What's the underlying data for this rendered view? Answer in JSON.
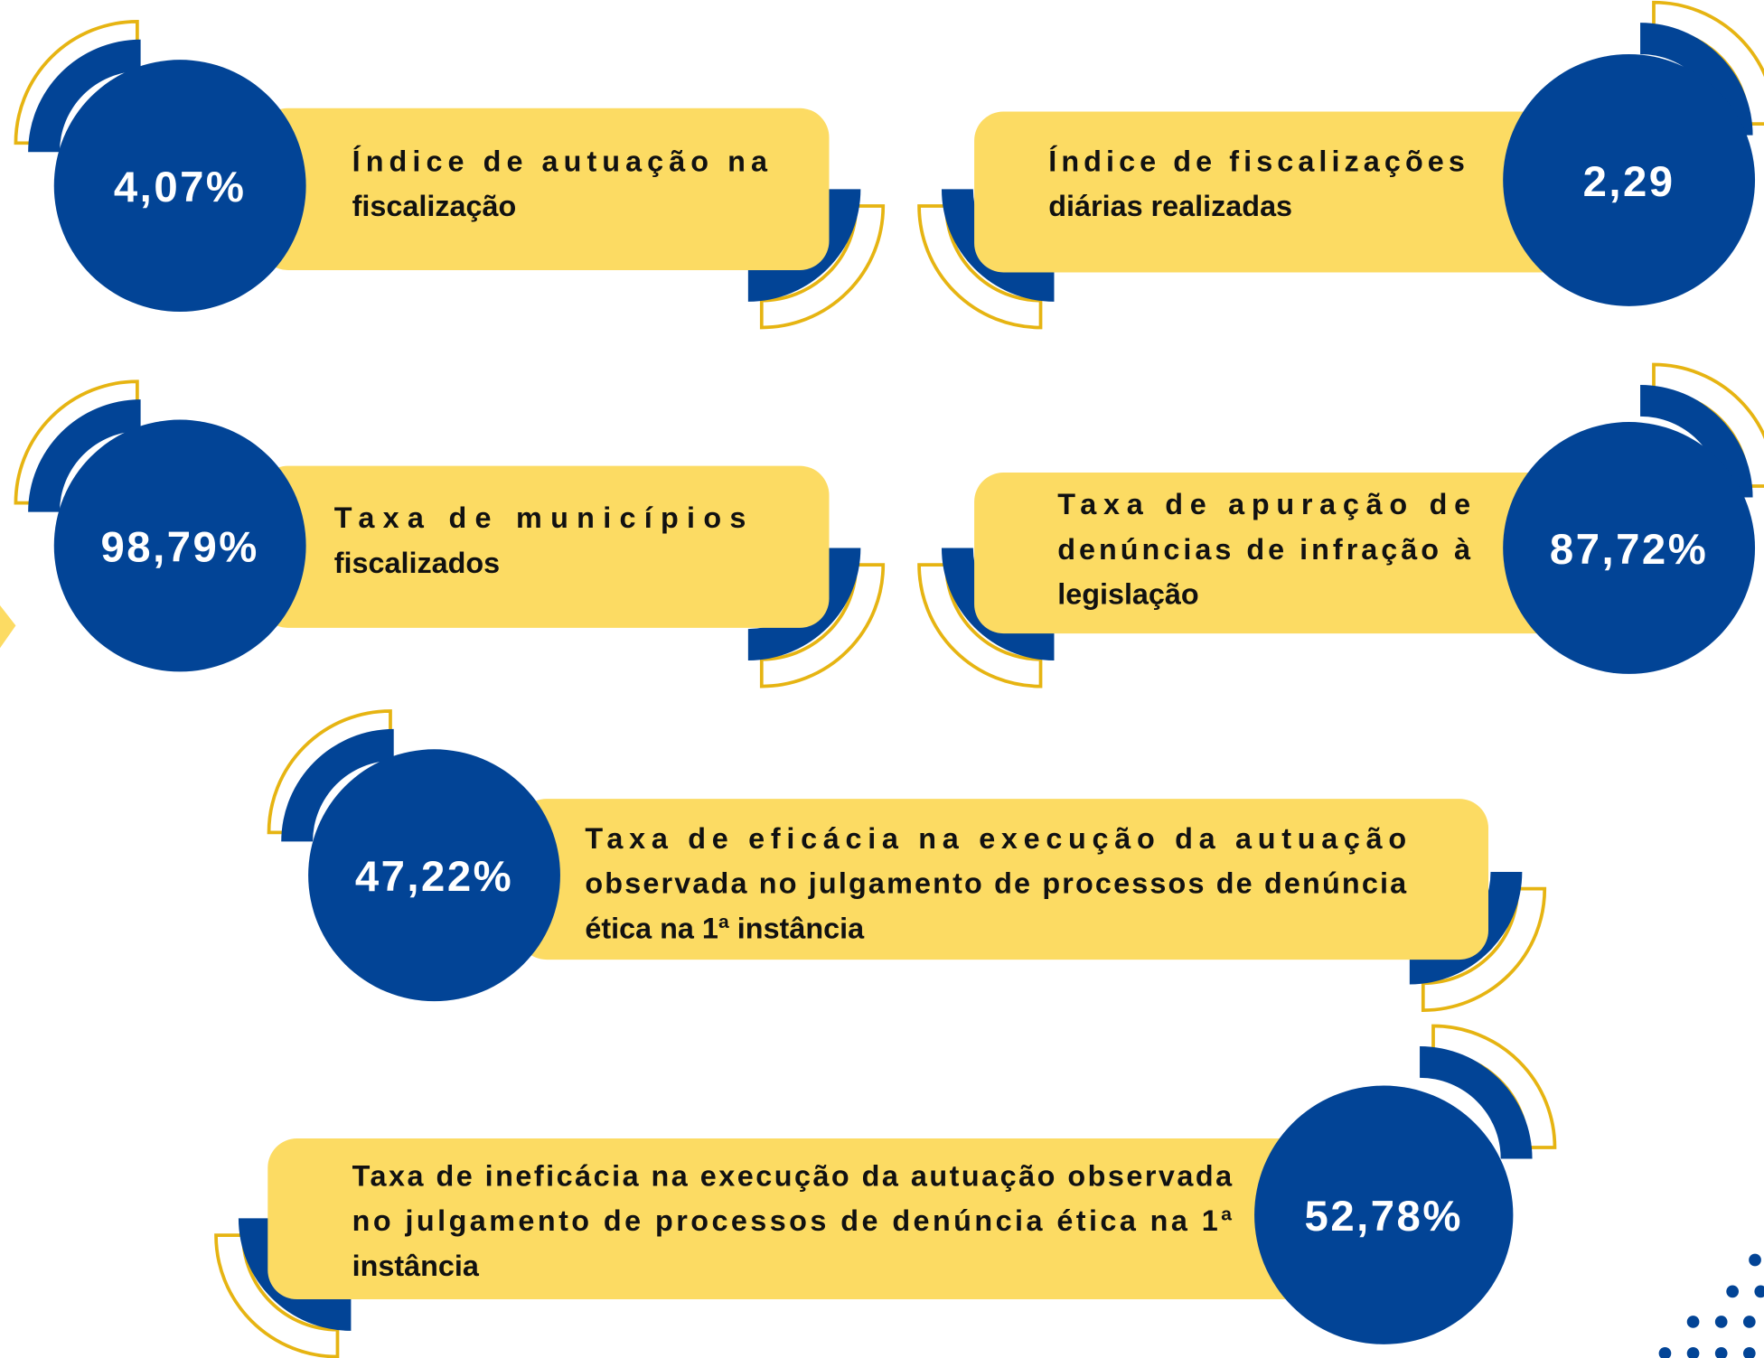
{
  "items": [
    {
      "value": "4,07%",
      "lines": [
        "Índice de autuação na",
        "fiscalização"
      ]
    },
    {
      "value": "2,29",
      "lines": [
        "Índice de fiscalizações",
        "diárias realizadas"
      ]
    },
    {
      "value": "98,79%",
      "lines": [
        "Taxa de municípios",
        "fiscalizados"
      ]
    },
    {
      "value": "87,72%",
      "lines": [
        "Taxa de apuração de",
        "denúncias de infração à",
        "legislação"
      ]
    },
    {
      "value": "47,22%",
      "lines": [
        "Taxa de eficácia na execução da autuação",
        "observada no julgamento de processos de denúncia",
        "ética na 1ª instância"
      ]
    },
    {
      "value": "52,78%",
      "lines": [
        "Taxa de ineficácia na execução da autuação observada",
        "no julgamento de processos de denúncia ética na 1ª",
        "instância"
      ]
    }
  ]
}
